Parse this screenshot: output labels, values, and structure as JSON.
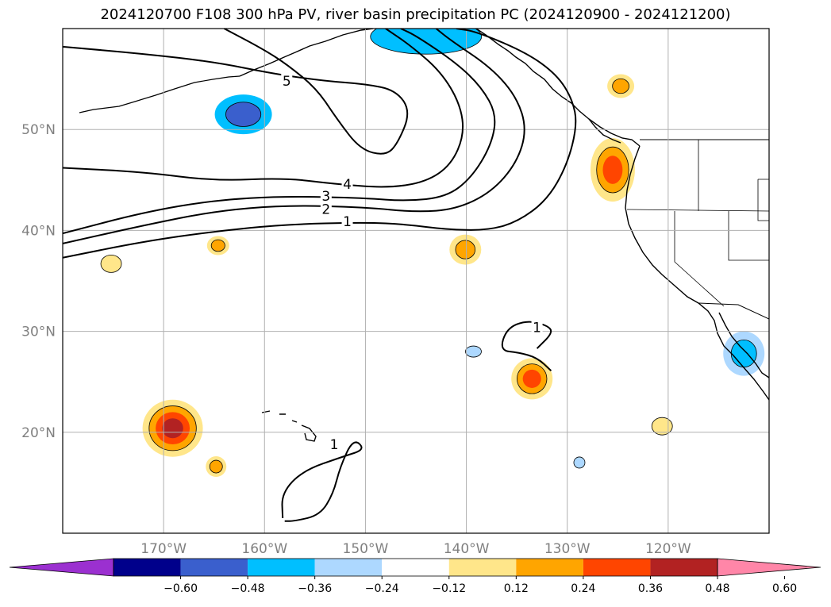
{
  "chart_data": {
    "type": "contour_map",
    "title": "2024120700 F108 300 hPa PV, river basin precipitation PC (2024120900 - 2024121200)",
    "lon_range": [
      -180,
      -110
    ],
    "lat_range": [
      10,
      60
    ],
    "lat_ticks": [
      {
        "value": 20,
        "label": "20°N"
      },
      {
        "value": 30,
        "label": "30°N"
      },
      {
        "value": 40,
        "label": "40°N"
      },
      {
        "value": 50,
        "label": "50°N"
      }
    ],
    "lon_ticks": [
      {
        "value": -170,
        "label": "170°W"
      },
      {
        "value": -160,
        "label": "160°W"
      },
      {
        "value": -150,
        "label": "150°W"
      },
      {
        "value": -140,
        "label": "140°W"
      },
      {
        "value": -130,
        "label": "130°W"
      },
      {
        "value": -120,
        "label": "120°W"
      }
    ],
    "grid": true,
    "pv_contours": [
      {
        "level": "1",
        "points": [
          [
            -180,
            37.3
          ],
          [
            -172,
            38.9
          ],
          [
            -165,
            39.9
          ],
          [
            -158,
            40.6
          ],
          [
            -150,
            40.8
          ],
          [
            -146,
            40.6
          ],
          [
            -142,
            40.1
          ],
          [
            -138,
            40.0
          ],
          [
            -135,
            40.8
          ],
          [
            -132,
            43.0
          ],
          [
            -130,
            46.5
          ],
          [
            -129,
            50.5
          ],
          [
            -129.5,
            53
          ],
          [
            -131,
            55.4
          ],
          [
            -134,
            57.6
          ],
          [
            -139,
            59.7
          ],
          [
            -141,
            60
          ]
        ],
        "label_pos": [
          -151.8,
          40.9
        ]
      },
      {
        "level": "2",
        "points": [
          [
            -180,
            38.7
          ],
          [
            -172,
            40.5
          ],
          [
            -165,
            41.9
          ],
          [
            -158,
            42.5
          ],
          [
            -150,
            42.3
          ],
          [
            -145,
            41.8
          ],
          [
            -141,
            42.1
          ],
          [
            -137.5,
            43.8
          ],
          [
            -135,
            46.7
          ],
          [
            -134,
            50
          ],
          [
            -135,
            53.2
          ],
          [
            -137.5,
            56.1
          ],
          [
            -141.5,
            58.8
          ],
          [
            -143,
            60
          ]
        ],
        "label_pos": [
          -153.9,
          42.1
        ]
      },
      {
        "level": "3",
        "points": [
          [
            -180,
            39.7
          ],
          [
            -172,
            41.8
          ],
          [
            -165,
            43.0
          ],
          [
            -158,
            43.4
          ],
          [
            -150,
            43.2
          ],
          [
            -146,
            42.9
          ],
          [
            -142,
            43.3
          ],
          [
            -139.5,
            45.2
          ],
          [
            -137.5,
            48.5
          ],
          [
            -137,
            51.5
          ],
          [
            -138.5,
            54.2
          ],
          [
            -141,
            56.6
          ],
          [
            -145,
            59.3
          ],
          [
            -146.5,
            60
          ]
        ],
        "label_pos": [
          -153.9,
          43.4
        ]
      },
      {
        "level": "4",
        "points": [
          [
            -180,
            46.2
          ],
          [
            -172,
            45.8
          ],
          [
            -165,
            44.9
          ],
          [
            -158,
            45.2
          ],
          [
            -153,
            44.6
          ],
          [
            -147.8,
            44.2
          ],
          [
            -144,
            44.8
          ],
          [
            -141.5,
            46.5
          ],
          [
            -140.2,
            49.5
          ],
          [
            -140.6,
            52.5
          ],
          [
            -142.5,
            55.7
          ],
          [
            -145.5,
            58.3
          ],
          [
            -148,
            60
          ]
        ],
        "label_pos": [
          -151.8,
          44.6
        ]
      },
      {
        "level": "5",
        "points": [
          [
            -180,
            58.2
          ],
          [
            -172,
            57.5
          ],
          [
            -165,
            56.7
          ],
          [
            -159,
            55.5
          ],
          [
            -154,
            54.8
          ],
          [
            -150,
            54.5
          ],
          [
            -147,
            53.9
          ],
          [
            -145.5,
            51.8
          ],
          [
            -146.8,
            48.6
          ],
          [
            -148,
            47.4
          ],
          [
            -150.5,
            48.0
          ],
          [
            -152.8,
            51.0
          ],
          [
            -154.8,
            54.0
          ],
          [
            -157.7,
            56.4
          ],
          [
            -160.2,
            58.0
          ],
          [
            -164,
            60
          ]
        ],
        "label_pos": [
          -157.8,
          54.8
        ]
      },
      {
        "level": "1",
        "points": [
          [
            -133,
            28.3
          ],
          [
            -131.4,
            29.9
          ],
          [
            -132,
            30.6
          ],
          [
            -134,
            31.1
          ],
          [
            -136,
            30.3
          ],
          [
            -136.7,
            28.1
          ],
          [
            -134.8,
            27.9
          ],
          [
            -133,
            27.4
          ],
          [
            -131.6,
            26.1
          ]
        ],
        "label_pos": [
          -133,
          30.4
        ]
      },
      {
        "level": "1",
        "points": [
          [
            -158,
            11.2
          ],
          [
            -157,
            11.2
          ],
          [
            -154.5,
            11.8
          ],
          [
            -153.2,
            13.9
          ],
          [
            -152.5,
            16.6
          ],
          [
            -151.2,
            19.4
          ],
          [
            -150,
            18.3
          ],
          [
            -152.2,
            17.6
          ],
          [
            -156.2,
            16.2
          ],
          [
            -158.3,
            14.0
          ],
          [
            -158.2,
            11.5
          ]
        ],
        "label_pos": [
          -153.1,
          18.8
        ]
      }
    ],
    "precip_blobs": [
      {
        "lon": -162.1,
        "lat": 51.5,
        "rx": 36,
        "ry": 25,
        "levels": [
          "#00bfff",
          "#3a5fcd"
        ]
      },
      {
        "lon": -144,
        "lat": 59.2,
        "rx": 70,
        "ry": 22,
        "levels": [
          "#00bfff"
        ]
      },
      {
        "lon": -169.1,
        "lat": 20.4,
        "rx": 38,
        "ry": 36,
        "levels": [
          "#ffe68a",
          "#ffa500",
          "#ff4500",
          "#b22222"
        ]
      },
      {
        "lon": -125.5,
        "lat": 46.0,
        "rx": 28,
        "ry": 40,
        "levels": [
          "#ffe68a",
          "#ffa500",
          "#ff4500"
        ]
      },
      {
        "lon": -133.5,
        "lat": 25.3,
        "rx": 26,
        "ry": 26,
        "levels": [
          "#ffe68a",
          "#ffa500",
          "#ff4500"
        ]
      },
      {
        "lon": -140.1,
        "lat": 38.1,
        "rx": 20,
        "ry": 19,
        "levels": [
          "#ffe68a",
          "#ffa500"
        ]
      },
      {
        "lon": -124.7,
        "lat": 54.3,
        "rx": 17,
        "ry": 15,
        "levels": [
          "#ffe68a",
          "#ffa500"
        ]
      },
      {
        "lon": -164.6,
        "lat": 38.5,
        "rx": 14,
        "ry": 12,
        "levels": [
          "#ffe68a",
          "#ffa500"
        ]
      },
      {
        "lon": -164.8,
        "lat": 16.6,
        "rx": 13,
        "ry": 13,
        "levels": [
          "#ffe68a",
          "#ffa500"
        ]
      },
      {
        "lon": -175.2,
        "lat": 36.7,
        "rx": 13,
        "ry": 11,
        "levels": [
          "#ffe68a"
        ]
      },
      {
        "lon": -112.5,
        "lat": 27.8,
        "rx": 26,
        "ry": 28,
        "levels": [
          "#add8ff",
          "#00bfff"
        ]
      },
      {
        "lon": -139.3,
        "lat": 28.0,
        "rx": 10,
        "ry": 7,
        "levels": [
          "#add8ff"
        ]
      },
      {
        "lon": -128.8,
        "lat": 17.0,
        "rx": 7,
        "ry": 7,
        "levels": [
          "#add8ff"
        ]
      },
      {
        "lon": -120.6,
        "lat": 20.6,
        "rx": 13,
        "ry": 11,
        "levels": [
          "#ffe68a"
        ]
      }
    ],
    "colorbar": {
      "extend": "both",
      "colors": [
        "#9b30d0",
        "#00008b",
        "#3a5fcd",
        "#00bfff",
        "#add8ff",
        "#ffffff",
        "#ffe68a",
        "#ffa500",
        "#ff4500",
        "#b22222",
        "#ff86a8"
      ],
      "tick_labels": [
        "−0.60",
        "−0.48",
        "−0.36",
        "−0.24",
        "−0.12",
        "0.12",
        "0.24",
        "0.36",
        "0.48",
        "0.60"
      ]
    }
  }
}
